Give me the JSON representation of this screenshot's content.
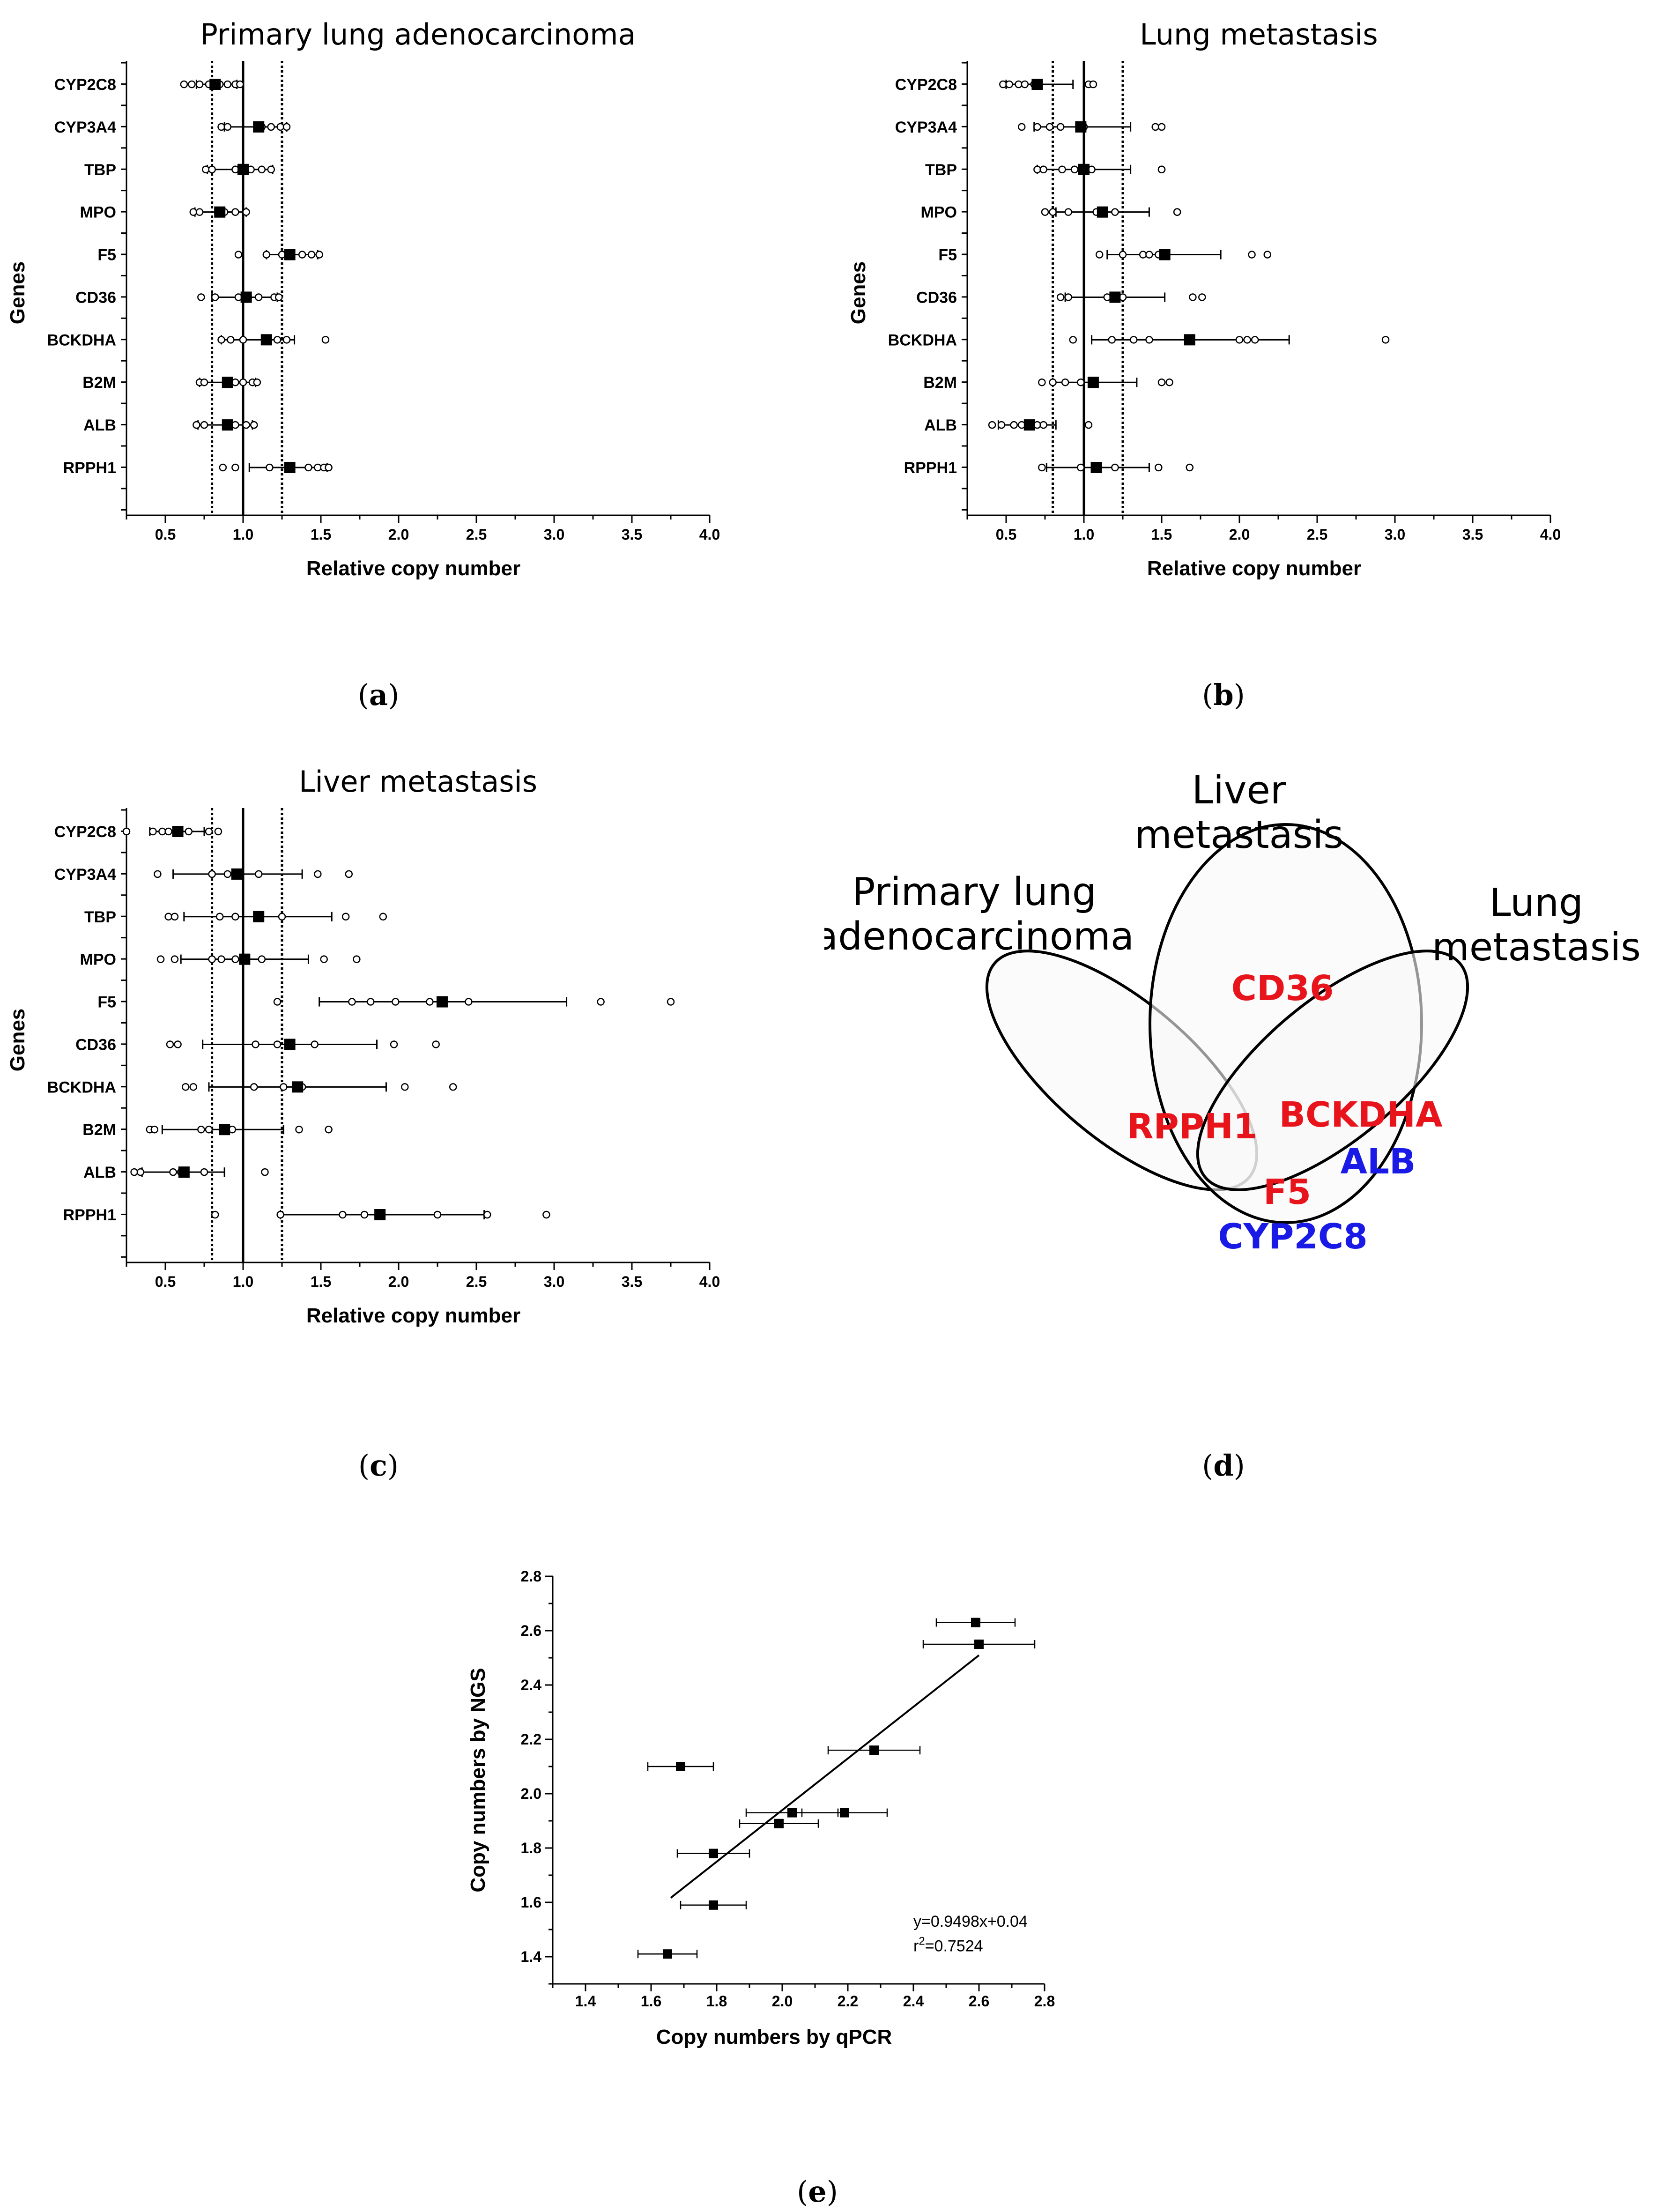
{
  "captions": {
    "a": "a",
    "b": "b",
    "c": "c",
    "d": "d",
    "e": "e"
  },
  "colors": {
    "significant_red": "#e8141b",
    "significant_blue": "#1a1ae6",
    "ink": "#000000"
  },
  "chart_data": [
    {
      "id": "a",
      "type": "scatter",
      "title": "Primary lung adenocarcinoma",
      "xlabel": "Relative copy number",
      "ylabel": "Genes",
      "xlim": [
        0.25,
        4.0
      ],
      "xticks": [
        "0.5",
        "1.0",
        "1.5",
        "2.0",
        "2.5",
        "3.0",
        "3.5",
        "4.0"
      ],
      "reference_lines": {
        "solid": 1.0,
        "dotted": [
          0.8,
          1.25
        ]
      },
      "genes": [
        "CYP2C8",
        "CYP3A4",
        "TBP",
        "MPO",
        "F5",
        "CD36",
        "BCKDHA",
        "B2M",
        "ALB",
        "RPPH1"
      ],
      "series": [
        {
          "gene": "CYP2C8",
          "mean": 0.82,
          "err": [
            0.7,
            0.96
          ],
          "points": [
            0.62,
            0.67,
            0.72,
            0.78,
            0.85,
            0.9,
            0.95,
            0.98
          ]
        },
        {
          "gene": "CYP3A4",
          "mean": 1.1,
          "err": [
            0.88,
            1.28
          ],
          "points": [
            0.86,
            0.9,
            1.12,
            1.18,
            1.24,
            1.28
          ]
        },
        {
          "gene": "TBP",
          "mean": 1.0,
          "err": [
            0.77,
            1.19
          ],
          "points": [
            0.76,
            0.8,
            0.95,
            1.05,
            1.12,
            1.18
          ]
        },
        {
          "gene": "MPO",
          "mean": 0.85,
          "err": [
            0.69,
            1.02
          ],
          "points": [
            0.68,
            0.72,
            0.88,
            0.95,
            1.02
          ]
        },
        {
          "gene": "F5",
          "mean": 1.3,
          "err": [
            1.15,
            1.48
          ],
          "points": [
            0.97,
            1.15,
            1.25,
            1.38,
            1.44,
            1.49
          ]
        },
        {
          "gene": "CD36",
          "mean": 1.02,
          "err": [
            0.8,
            1.22
          ],
          "points": [
            0.73,
            0.82,
            0.97,
            1.1,
            1.2,
            1.23
          ]
        },
        {
          "gene": "BCKDHA",
          "mean": 1.15,
          "err": [
            0.86,
            1.33
          ],
          "points": [
            0.86,
            0.92,
            1.0,
            1.22,
            1.28,
            1.53
          ]
        },
        {
          "gene": "B2M",
          "mean": 0.9,
          "err": [
            0.72,
            1.08
          ],
          "points": [
            0.72,
            0.75,
            0.95,
            1.0,
            1.06,
            1.09
          ]
        },
        {
          "gene": "ALB",
          "mean": 0.9,
          "err": [
            0.71,
            1.06
          ],
          "points": [
            0.7,
            0.75,
            0.95,
            1.02,
            1.07
          ]
        },
        {
          "gene": "RPPH1",
          "mean": 1.3,
          "err": [
            1.04,
            1.54
          ],
          "points": [
            0.87,
            0.95,
            1.17,
            1.42,
            1.48,
            1.52,
            1.55
          ]
        }
      ]
    },
    {
      "id": "b",
      "type": "scatter",
      "title": "Lung metastasis",
      "xlabel": "Relative copy number",
      "ylabel": "Genes",
      "xlim": [
        0.25,
        4.0
      ],
      "xticks": [
        "0.5",
        "1.0",
        "1.5",
        "2.0",
        "2.5",
        "3.0",
        "3.5",
        "4.0"
      ],
      "reference_lines": {
        "solid": 1.0,
        "dotted": [
          0.8,
          1.25
        ]
      },
      "genes": [
        "CYP2C8",
        "CYP3A4",
        "TBP",
        "MPO",
        "F5",
        "CD36",
        "BCKDHA",
        "B2M",
        "ALB",
        "RPPH1"
      ],
      "series": [
        {
          "gene": "CYP2C8",
          "mean": 0.7,
          "err": [
            0.5,
            0.93
          ],
          "points": [
            0.48,
            0.52,
            0.58,
            0.62,
            0.68,
            1.03,
            1.06
          ]
        },
        {
          "gene": "CYP3A4",
          "mean": 0.98,
          "err": [
            0.68,
            1.3
          ],
          "points": [
            0.6,
            0.7,
            0.78,
            0.85,
            1.0,
            1.46,
            1.5
          ]
        },
        {
          "gene": "TBP",
          "mean": 1.0,
          "err": [
            0.7,
            1.3
          ],
          "points": [
            0.7,
            0.74,
            0.86,
            0.94,
            1.05,
            1.5,
            1.5
          ]
        },
        {
          "gene": "MPO",
          "mean": 1.12,
          "err": [
            0.82,
            1.42
          ],
          "points": [
            0.75,
            0.8,
            0.9,
            1.08,
            1.2,
            1.6,
            1.6
          ]
        },
        {
          "gene": "F5",
          "mean": 1.52,
          "err": [
            1.15,
            1.88
          ],
          "points": [
            1.1,
            1.25,
            1.38,
            1.42,
            1.48,
            2.08,
            2.18
          ]
        },
        {
          "gene": "CD36",
          "mean": 1.2,
          "err": [
            0.88,
            1.52
          ],
          "points": [
            0.85,
            0.9,
            1.15,
            1.25,
            1.7,
            1.76
          ]
        },
        {
          "gene": "BCKDHA",
          "mean": 1.68,
          "err": [
            1.05,
            2.32
          ],
          "points": [
            0.93,
            1.18,
            1.32,
            1.42,
            2.0,
            2.05,
            2.1,
            2.94
          ]
        },
        {
          "gene": "B2M",
          "mean": 1.06,
          "err": [
            0.8,
            1.34
          ],
          "points": [
            0.73,
            0.8,
            0.88,
            0.98,
            1.5,
            1.55
          ]
        },
        {
          "gene": "ALB",
          "mean": 0.65,
          "err": [
            0.45,
            0.82
          ],
          "points": [
            0.41,
            0.47,
            0.55,
            0.6,
            0.7,
            0.74,
            1.03
          ]
        },
        {
          "gene": "RPPH1",
          "mean": 1.08,
          "err": [
            0.76,
            1.42
          ],
          "points": [
            0.73,
            0.98,
            1.2,
            1.48,
            1.68
          ]
        }
      ]
    },
    {
      "id": "c",
      "type": "scatter",
      "title": "Liver metastasis",
      "xlabel": "Relative copy number",
      "ylabel": "Genes",
      "xlim": [
        0.25,
        4.0
      ],
      "xticks": [
        "0.5",
        "1.0",
        "1.5",
        "2.0",
        "2.5",
        "3.0",
        "3.5",
        "4.0"
      ],
      "reference_lines": {
        "solid": 1.0,
        "dotted": [
          0.8,
          1.25
        ]
      },
      "genes": [
        "CYP2C8",
        "CYP3A4",
        "TBP",
        "MPO",
        "F5",
        "CD36",
        "BCKDHA",
        "B2M",
        "ALB",
        "RPPH1"
      ],
      "series": [
        {
          "gene": "CYP2C8",
          "mean": 0.58,
          "err": [
            0.4,
            0.75
          ],
          "points": [
            0.25,
            0.42,
            0.48,
            0.52,
            0.65,
            0.78,
            0.84
          ]
        },
        {
          "gene": "CYP3A4",
          "mean": 0.96,
          "err": [
            0.55,
            1.38
          ],
          "points": [
            0.45,
            0.8,
            0.9,
            1.1,
            1.48,
            1.68
          ]
        },
        {
          "gene": "TBP",
          "mean": 1.1,
          "err": [
            0.62,
            1.57
          ],
          "points": [
            0.52,
            0.56,
            0.85,
            0.95,
            1.25,
            1.66,
            1.9
          ]
        },
        {
          "gene": "MPO",
          "mean": 1.01,
          "err": [
            0.6,
            1.42
          ],
          "points": [
            0.47,
            0.56,
            0.8,
            0.86,
            0.95,
            1.12,
            1.52,
            1.73
          ]
        },
        {
          "gene": "F5",
          "mean": 2.28,
          "err": [
            1.49,
            3.08
          ],
          "points": [
            1.22,
            1.7,
            1.82,
            1.98,
            2.2,
            2.45,
            3.3,
            3.75
          ]
        },
        {
          "gene": "CD36",
          "mean": 1.3,
          "err": [
            0.74,
            1.86
          ],
          "points": [
            0.53,
            0.58,
            1.08,
            1.22,
            1.46,
            1.97,
            2.24
          ]
        },
        {
          "gene": "BCKDHA",
          "mean": 1.35,
          "err": [
            0.78,
            1.92
          ],
          "points": [
            0.63,
            0.68,
            1.07,
            1.26,
            1.38,
            2.04,
            2.35
          ]
        },
        {
          "gene": "B2M",
          "mean": 0.88,
          "err": [
            0.48,
            1.26
          ],
          "points": [
            0.4,
            0.43,
            0.73,
            0.78,
            0.93,
            1.36,
            1.55
          ]
        },
        {
          "gene": "ALB",
          "mean": 0.62,
          "err": [
            0.35,
            0.88
          ],
          "points": [
            0.3,
            0.34,
            0.55,
            0.6,
            0.75,
            1.14
          ]
        },
        {
          "gene": "RPPH1",
          "mean": 1.88,
          "err": [
            1.24,
            2.55
          ],
          "points": [
            0.82,
            1.24,
            1.64,
            1.78,
            2.25,
            2.57,
            2.95
          ]
        }
      ]
    },
    {
      "id": "d",
      "type": "venn",
      "sets": [
        "Primary lung adenocarcinoma",
        "Liver metastasis",
        "Lung metastasis"
      ],
      "set_label_lines": {
        "primary": [
          "Primary lung",
          "adenocarcinoma"
        ],
        "liver": [
          "Liver",
          "metastasis"
        ],
        "lung": [
          "Lung",
          "metastasis"
        ]
      },
      "regions": {
        "liver_only": {
          "red": [
            "CD36"
          ],
          "blue": []
        },
        "primary_and_liver": {
          "red": [
            "RPPH1"
          ],
          "blue": []
        },
        "liver_and_lung": {
          "red": [
            "BCKDHA"
          ],
          "blue": [
            "ALB"
          ]
        },
        "all_three": {
          "red": [
            "F5"
          ],
          "blue": [
            "CYP2C8"
          ]
        }
      }
    },
    {
      "id": "e",
      "type": "scatter",
      "xlabel": "Copy numbers by qPCR",
      "ylabel": "Copy numbers by NGS",
      "xlim": [
        1.3,
        2.8
      ],
      "ylim": [
        1.3,
        2.8
      ],
      "xticks": [
        "1.4",
        "1.6",
        "1.8",
        "2.0",
        "2.2",
        "2.4",
        "2.6",
        "2.8"
      ],
      "yticks": [
        "1.4",
        "1.6",
        "1.8",
        "2.0",
        "2.2",
        "2.4",
        "2.6",
        "2.8"
      ],
      "points": [
        {
          "x": 1.65,
          "y": 1.41,
          "xerr": 0.09
        },
        {
          "x": 1.79,
          "y": 1.59,
          "xerr": 0.1
        },
        {
          "x": 1.79,
          "y": 1.78,
          "xerr": 0.11
        },
        {
          "x": 1.69,
          "y": 2.1,
          "xerr": 0.1
        },
        {
          "x": 1.99,
          "y": 1.89,
          "xerr": 0.12
        },
        {
          "x": 2.03,
          "y": 1.93,
          "xerr": 0.14
        },
        {
          "x": 2.19,
          "y": 1.93,
          "xerr": 0.13
        },
        {
          "x": 2.28,
          "y": 2.16,
          "xerr": 0.14
        },
        {
          "x": 2.59,
          "y": 2.63,
          "xerr": 0.12
        },
        {
          "x": 2.6,
          "y": 2.55,
          "xerr": 0.17
        }
      ],
      "fit_line": {
        "slope": 0.9498,
        "intercept": 0.04,
        "x_range": [
          1.66,
          2.6
        ]
      },
      "equation": "y=0.9498x+0.04",
      "r2_prefix": "r",
      "r2_sup": "2",
      "r2_value": "=0.7524"
    }
  ]
}
